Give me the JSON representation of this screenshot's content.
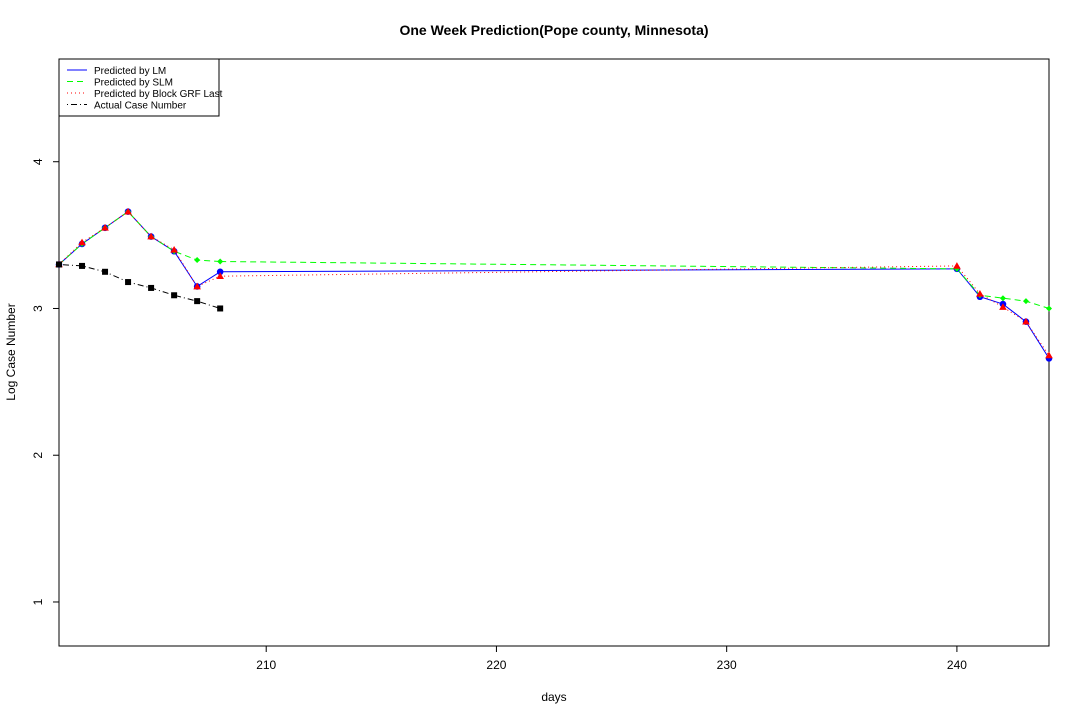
{
  "chart_data": {
    "type": "line",
    "title": "One Week Prediction(Pope county, Minnesota)",
    "xlabel": "days",
    "ylabel": "Log Case Number",
    "xlim": [
      201,
      244
    ],
    "ylim": [
      0.7,
      4.7
    ],
    "xticks": [
      210,
      220,
      230,
      240
    ],
    "yticks": [
      1,
      2,
      3,
      4
    ],
    "grid": false,
    "legend_position": "top-left",
    "series": [
      {
        "name": "Predicted by LM",
        "color": "#0000ff",
        "line": "solid",
        "marker": "circle",
        "segments": [
          {
            "x": [
              201,
              202,
              203,
              204,
              205,
              206,
              207,
              208
            ],
            "y": [
              3.3,
              3.44,
              3.55,
              3.66,
              3.49,
              3.39,
              3.15,
              3.25
            ]
          },
          {
            "x": [
              240,
              241,
              242,
              243,
              244
            ],
            "y": [
              3.27,
              3.08,
              3.03,
              2.91,
              2.66
            ]
          }
        ],
        "bridge": {
          "x": [
            208,
            240
          ],
          "y": [
            3.25,
            3.27
          ]
        }
      },
      {
        "name": "Predicted by SLM",
        "color": "#00ff00",
        "line": "dashed",
        "marker": "diamond",
        "segments": [
          {
            "x": [
              201,
              202,
              203,
              204,
              205,
              206,
              207,
              208
            ],
            "y": [
              3.3,
              3.44,
              3.55,
              3.66,
              3.49,
              3.39,
              3.33,
              3.32
            ]
          },
          {
            "x": [
              240,
              241,
              242,
              243,
              244
            ],
            "y": [
              3.27,
              3.09,
              3.07,
              3.05,
              3.0
            ]
          }
        ],
        "bridge": {
          "x": [
            208,
            240
          ],
          "y": [
            3.32,
            3.27
          ]
        }
      },
      {
        "name": "Predicted by Block GRF Last",
        "color": "#ff0000",
        "line": "dotted",
        "marker": "triangle",
        "segments": [
          {
            "x": [
              201,
              202,
              203,
              204,
              205,
              206,
              207,
              208
            ],
            "y": [
              3.3,
              3.45,
              3.55,
              3.66,
              3.49,
              3.4,
              3.15,
              3.22
            ]
          },
          {
            "x": [
              240,
              241,
              242,
              243,
              244
            ],
            "y": [
              3.29,
              3.1,
              3.01,
              2.91,
              2.68
            ]
          }
        ],
        "bridge": {
          "x": [
            208,
            240
          ],
          "y": [
            3.22,
            3.29
          ]
        }
      },
      {
        "name": "Actual Case Number",
        "color": "#000000",
        "line": "dashdot",
        "marker": "square",
        "segments": [
          {
            "x": [
              201,
              202,
              203,
              204,
              205,
              206,
              207,
              208
            ],
            "y": [
              3.3,
              3.29,
              3.25,
              3.18,
              3.14,
              3.09,
              3.05,
              3.0
            ]
          }
        ]
      }
    ]
  }
}
